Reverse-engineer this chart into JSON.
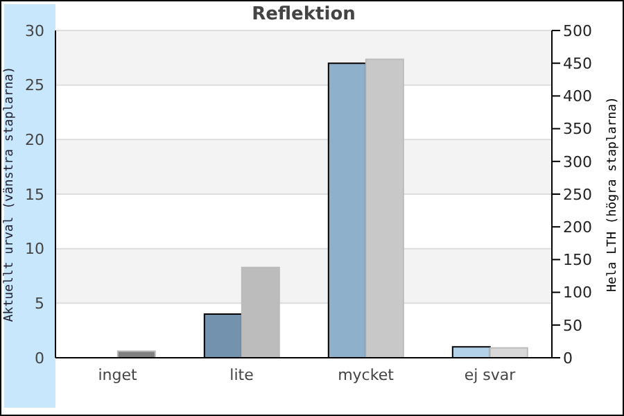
{
  "chart_data": {
    "type": "bar",
    "title": "Reflektion",
    "ylabel": "Aktuellt urval (vänstra staplarna)",
    "y2label": "Hela LTH (högra staplarna)",
    "categories": [
      "inget",
      "lite",
      "mycket",
      "ej svar"
    ],
    "series": [
      {
        "colors": [
          "#7392ad",
          "#7392ad",
          "#8fb0cb",
          "#b3d2ea"
        ],
        "values": [
          0,
          4,
          27,
          1
        ]
      },
      {
        "axis": "y2",
        "colors": [
          "#808080",
          "#bcbcbc",
          "#c8c8c8",
          "#d8d8d8"
        ],
        "values": [
          10,
          138,
          456,
          15
        ]
      }
    ],
    "ylim": [
      0,
      30
    ],
    "yticks": [
      0,
      5,
      10,
      15,
      20,
      25,
      30
    ],
    "y2lim": [
      0,
      500
    ],
    "y2ticks": [
      0,
      50,
      100,
      150,
      200,
      250,
      300,
      350,
      400,
      450,
      500
    ],
    "grid": "y",
    "legend": false
  }
}
